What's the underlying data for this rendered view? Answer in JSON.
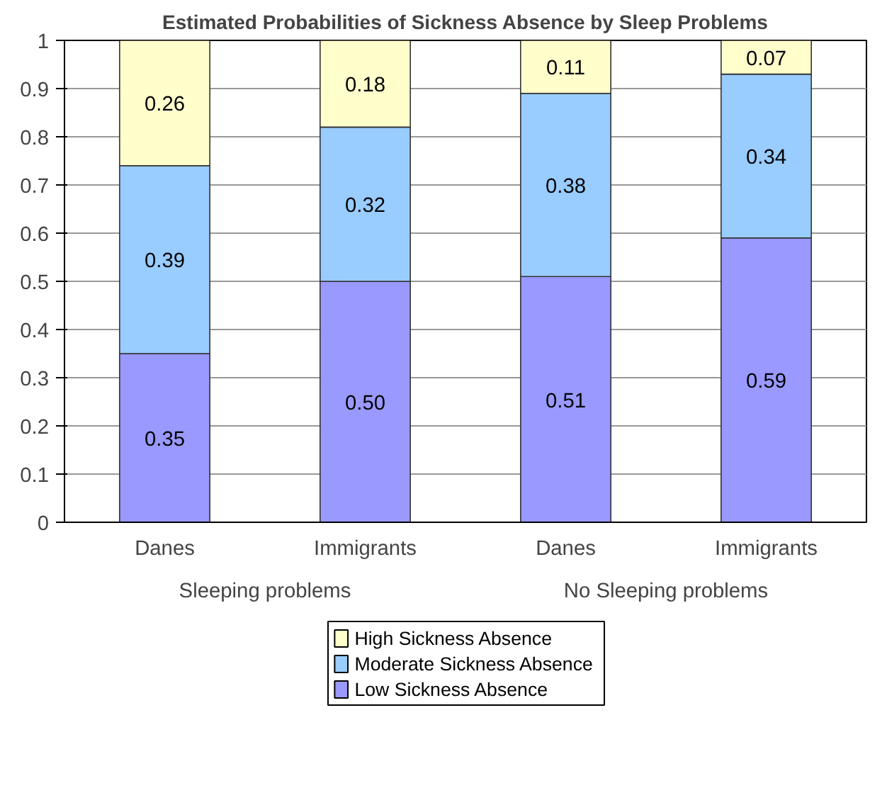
{
  "chart_data": {
    "type": "bar",
    "title": "Estimated Probabilities of Sickness Absence by Sleep Problems",
    "categories": [
      "Danes",
      "Immigrants",
      "Danes",
      "Immigrants"
    ],
    "stacked": true,
    "series": [
      {
        "name": "Low Sickness Absence",
        "color": "#9999ff",
        "values": [
          0.35,
          0.5,
          0.51,
          0.59
        ],
        "value_labels": [
          "0.35",
          "0.50",
          "0.51",
          "0.59"
        ]
      },
      {
        "name": "Moderate Sickness Absence",
        "color": "#99ccff",
        "values": [
          0.39,
          0.32,
          0.38,
          0.34
        ],
        "value_labels": [
          "0.39",
          "0.32",
          "0.38",
          "0.34"
        ]
      },
      {
        "name": "High Sickness Absence",
        "color": "#ffffcc",
        "values": [
          0.26,
          0.18,
          0.11,
          0.07
        ],
        "value_labels": [
          "0.26",
          "0.18",
          "0.11",
          "0.07"
        ]
      }
    ],
    "annotations": [
      "Sleeping problems",
      "No Sleeping problems"
    ],
    "ylim": [
      0,
      1
    ],
    "yticks": [
      0,
      0.1,
      0.2,
      0.3,
      0.4,
      0.5,
      0.6,
      0.7,
      0.8,
      0.9,
      1
    ],
    "grid": "y",
    "legend": "bottom"
  }
}
